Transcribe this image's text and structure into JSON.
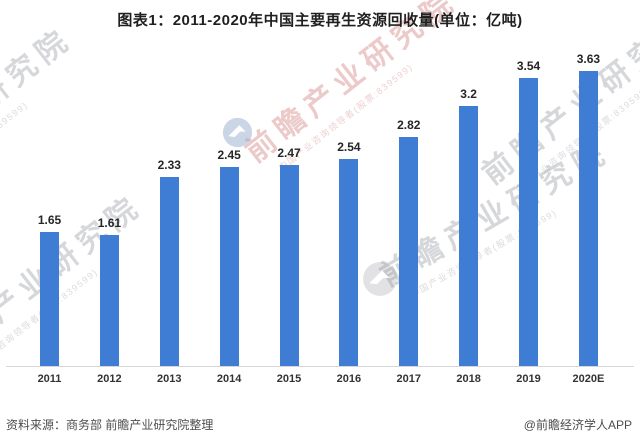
{
  "title": "图表1：2011-2020年中国主要再生资源回收量(单位：亿吨)",
  "chart_data": {
    "type": "bar",
    "title": "图表1：2011-2020年中国主要再生资源回收量(单位：亿吨)",
    "categories": [
      "2011",
      "2012",
      "2013",
      "2014",
      "2015",
      "2016",
      "2017",
      "2018",
      "2019",
      "2020E"
    ],
    "values": [
      1.65,
      1.61,
      2.33,
      2.45,
      2.47,
      2.54,
      2.82,
      3.2,
      3.54,
      3.63
    ],
    "value_labels": [
      "1.65",
      "1.61",
      "2.33",
      "2.45",
      "2.47",
      "2.54",
      "2.82",
      "3.2",
      "3.54",
      "3.63"
    ],
    "unit": "亿吨",
    "xlabel": "",
    "ylabel": "",
    "ylim": [
      0,
      4.5
    ],
    "bar_color": "#3E7DD3",
    "grid": false,
    "legend": false,
    "value_labels_shown": true
  },
  "footer": {
    "source": "资料来源：商务部 前瞻产业研究院整理",
    "credit": "@前瞻经济学人APP"
  },
  "watermark": {
    "brand_text": "前瞻产业研究院",
    "sub_text": "中国产业咨询领导者(股票:839599)",
    "logo": "qianzhan-circle-logo"
  },
  "colors": {
    "bar": "#3E7DD3",
    "axis_line": "#d6d6d6",
    "title_text": "#1f1f1f",
    "label_text": "#262626",
    "footer_text": "#4d4d4d"
  }
}
